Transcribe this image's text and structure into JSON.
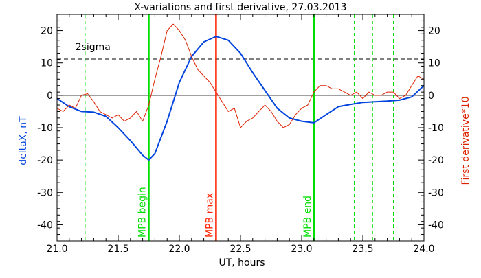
{
  "chart_data": {
    "type": "line",
    "title": "X-variations and first derivative, 27.03.2013",
    "xlabel": "UT, hours",
    "ylabel_left": "deltaX, nT",
    "ylabel_right": "First derivative*10",
    "xlim": [
      21.0,
      24.0
    ],
    "ylim": [
      -45,
      25
    ],
    "x_ticks": [
      "21.0",
      "21.5",
      "22.0",
      "22.5",
      "23.0",
      "23.5",
      "24.0"
    ],
    "y_ticks": [
      "20",
      "10",
      "0",
      "-10",
      "-20",
      "-30",
      "-40"
    ],
    "sigma_label": "2sigma",
    "sigma_value": 11.2,
    "colors": {
      "deltaX": "#0044dd",
      "derivative": "#dd2200",
      "mpb_lines": "#00dd00",
      "mpb_max_line": "#ff2200",
      "axes": "#000000"
    },
    "series": [
      {
        "name": "deltaX, nT",
        "x": [
          21.0,
          21.1,
          21.2,
          21.3,
          21.4,
          21.5,
          21.6,
          21.7,
          21.75,
          21.8,
          21.9,
          22.0,
          22.1,
          22.2,
          22.3,
          22.4,
          22.5,
          22.6,
          22.7,
          22.8,
          22.9,
          23.0,
          23.1,
          23.2,
          23.3,
          23.4,
          23.5,
          23.6,
          23.7,
          23.8,
          23.9,
          24.0
        ],
        "values": [
          -1,
          -3.5,
          -5,
          -5.2,
          -6.5,
          -10,
          -14,
          -18.5,
          -20,
          -18,
          -8,
          4,
          12,
          16.5,
          18.2,
          17,
          13,
          7,
          1.5,
          -4,
          -7,
          -8,
          -8.5,
          -6,
          -3.5,
          -2.8,
          -2.2,
          -2,
          -1.8,
          -1.5,
          -0.5,
          3
        ]
      },
      {
        "name": "First derivative*10",
        "x": [
          21.0,
          21.05,
          21.1,
          21.15,
          21.2,
          21.25,
          21.3,
          21.35,
          21.4,
          21.45,
          21.5,
          21.55,
          21.6,
          21.65,
          21.7,
          21.75,
          21.8,
          21.85,
          21.9,
          21.95,
          22.0,
          22.05,
          22.1,
          22.15,
          22.2,
          22.25,
          22.3,
          22.35,
          22.4,
          22.45,
          22.5,
          22.55,
          22.6,
          22.65,
          22.7,
          22.75,
          22.8,
          22.85,
          22.9,
          22.95,
          23.0,
          23.05,
          23.1,
          23.15,
          23.2,
          23.25,
          23.3,
          23.35,
          23.4,
          23.45,
          23.5,
          23.55,
          23.6,
          23.65,
          23.7,
          23.75,
          23.8,
          23.85,
          23.9,
          23.95,
          24.0
        ],
        "values": [
          -4,
          -5,
          -3,
          -4,
          0,
          0.5,
          -2,
          -5,
          -6,
          -7,
          -6,
          -8,
          -7,
          -5,
          -8,
          -3,
          5,
          12,
          20,
          22,
          20,
          17,
          12,
          8,
          6,
          4,
          1,
          -2,
          -5,
          -4,
          -10,
          -8,
          -7,
          -5,
          -3,
          -5,
          -8,
          -10,
          -9,
          -6,
          -4,
          -3,
          1,
          3,
          3,
          2,
          2,
          1,
          0,
          1,
          -1,
          1,
          0,
          0,
          1,
          1,
          -1,
          0,
          3,
          6,
          5
        ]
      }
    ],
    "vertical_markers": [
      {
        "x": 21.23,
        "style": "dashed",
        "color": "#00dd00",
        "label": ""
      },
      {
        "x": 21.75,
        "style": "solid",
        "color": "#00dd00",
        "label": "MPB begin"
      },
      {
        "x": 22.3,
        "style": "solid",
        "color": "#ff2200",
        "label": "MPB max"
      },
      {
        "x": 23.1,
        "style": "solid",
        "color": "#00dd00",
        "label": "MPB end"
      },
      {
        "x": 23.43,
        "style": "dashed",
        "color": "#00dd00",
        "label": ""
      },
      {
        "x": 23.58,
        "style": "dashed",
        "color": "#00dd00",
        "label": ""
      },
      {
        "x": 23.75,
        "style": "dashed",
        "color": "#00dd00",
        "label": ""
      }
    ]
  }
}
